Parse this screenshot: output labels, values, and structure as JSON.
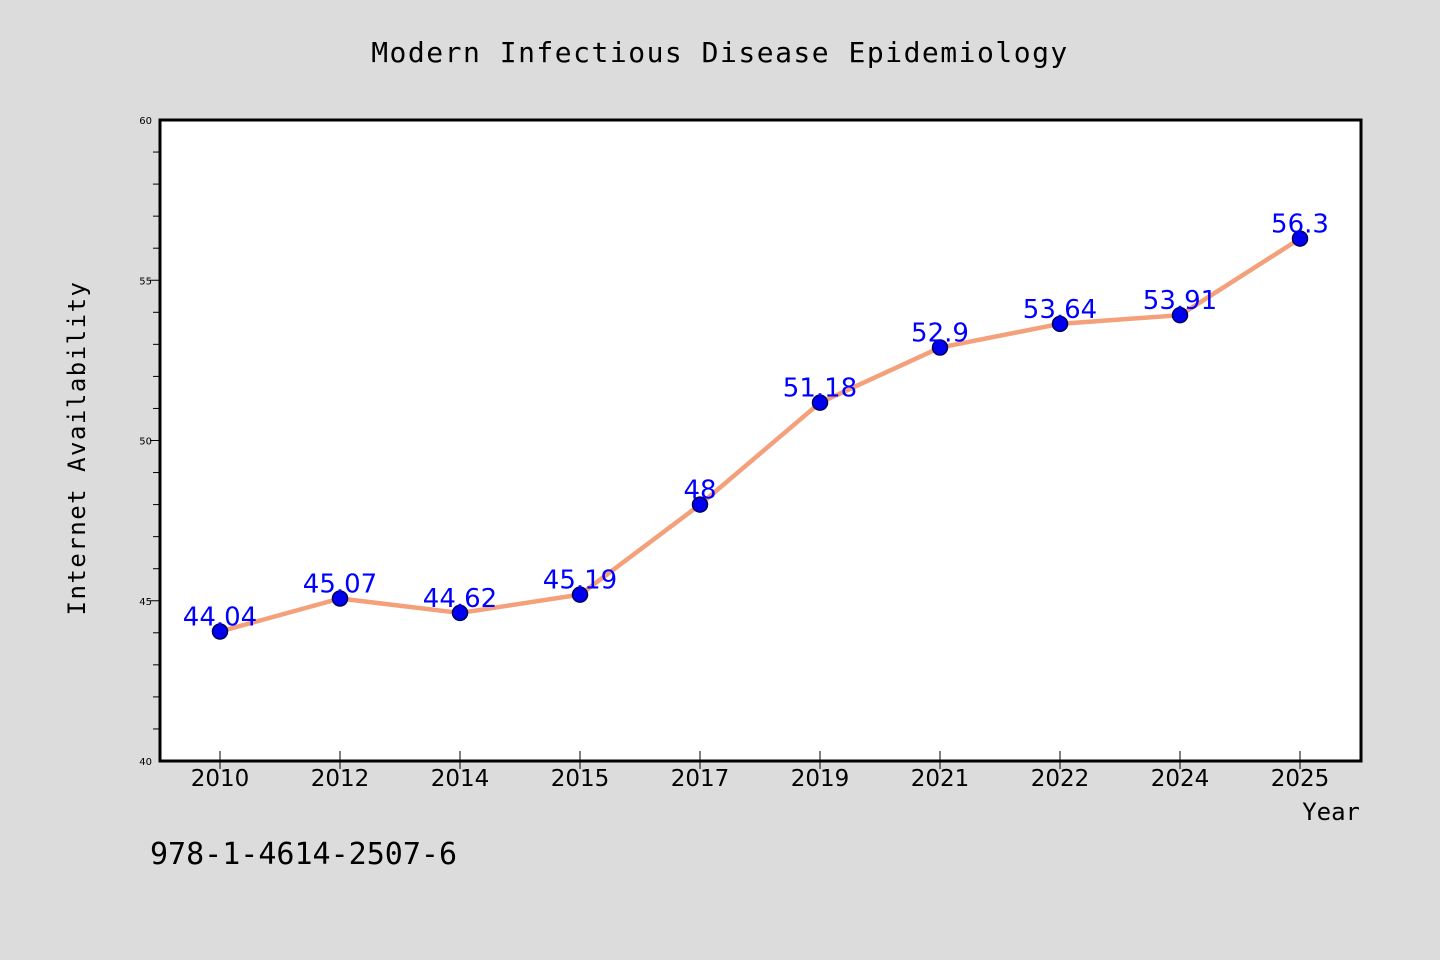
{
  "chart_data": {
    "type": "line",
    "title": "Modern Infectious Disease Epidemiology",
    "xlabel": "Year",
    "ylabel": "Internet Availability",
    "categories": [
      "2010",
      "2012",
      "2014",
      "2015",
      "2017",
      "2019",
      "2021",
      "2022",
      "2024",
      "2025"
    ],
    "values": [
      44.04,
      45.07,
      44.62,
      45.19,
      48,
      51.18,
      52.9,
      53.64,
      53.91,
      56.3
    ],
    "data_labels": [
      "44.04",
      "45.07",
      "44.62",
      "45.19",
      "48",
      "51.18",
      "52.9",
      "53.64",
      "53.91",
      "56.3"
    ],
    "ylim": [
      40,
      60
    ],
    "y_ticks": [
      "40",
      "45",
      "50",
      "55",
      "60"
    ],
    "grid": false,
    "line_color": "#f4a07a",
    "marker_color": "#0000ee",
    "label_color": "#0000ff",
    "background": "#dcdcdc",
    "plot_background": "#ffffff"
  },
  "footer": {
    "isbn": "978-1-4614-2507-6"
  }
}
